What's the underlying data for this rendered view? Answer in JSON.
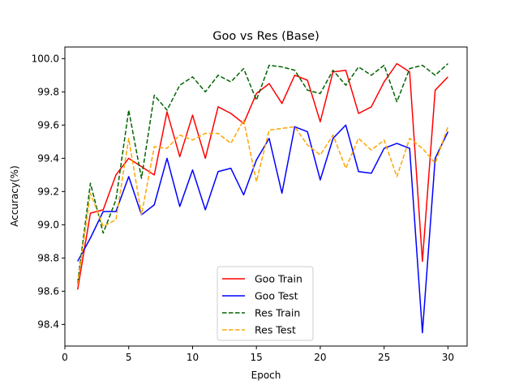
{
  "chart_data": {
    "type": "line",
    "title": "Goo vs Res (Base)",
    "xlabel": "Epoch",
    "ylabel": "Accuracy(%)",
    "xlim": [
      0,
      31.5
    ],
    "ylim": [
      98.27,
      100.07
    ],
    "xticks": [
      0,
      5,
      10,
      15,
      20,
      25,
      30
    ],
    "yticks": [
      98.4,
      98.6,
      98.8,
      99.0,
      99.2,
      99.4,
      99.6,
      99.8,
      100.0
    ],
    "ytick_labels": [
      "98.4",
      "98.6",
      "98.8",
      "99.0",
      "99.2",
      "99.4",
      "99.6",
      "99.8",
      "100.0"
    ],
    "grid": false,
    "legend_position": "lower center",
    "x": [
      1,
      2,
      3,
      4,
      5,
      6,
      7,
      8,
      9,
      10,
      11,
      12,
      13,
      14,
      15,
      16,
      17,
      18,
      19,
      20,
      21,
      22,
      23,
      24,
      25,
      26,
      27,
      28,
      29,
      30
    ],
    "series": [
      {
        "name": "Goo Train",
        "color": "#ff0000",
        "style": "solid",
        "values": [
          98.61,
          99.07,
          99.09,
          99.3,
          99.4,
          99.35,
          99.3,
          99.68,
          99.41,
          99.66,
          99.4,
          99.71,
          99.67,
          99.61,
          99.79,
          99.85,
          99.73,
          99.9,
          99.87,
          99.62,
          99.92,
          99.93,
          99.67,
          99.71,
          99.86,
          99.97,
          99.92,
          98.78,
          99.81,
          99.89
        ]
      },
      {
        "name": "Goo Test",
        "color": "#0000ff",
        "style": "solid",
        "values": [
          98.78,
          98.92,
          99.08,
          99.08,
          99.29,
          99.06,
          99.12,
          99.4,
          99.11,
          99.33,
          99.09,
          99.32,
          99.34,
          99.18,
          99.39,
          99.52,
          99.19,
          99.59,
          99.56,
          99.27,
          99.52,
          99.6,
          99.32,
          99.31,
          99.46,
          99.49,
          99.46,
          98.35,
          99.4,
          99.56
        ]
      },
      {
        "name": "Res Train",
        "color": "#006400",
        "style": "dashed",
        "values": [
          98.65,
          99.25,
          98.95,
          99.15,
          99.69,
          99.28,
          99.78,
          99.69,
          99.84,
          99.89,
          99.8,
          99.9,
          99.86,
          99.94,
          99.75,
          99.96,
          99.95,
          99.93,
          99.81,
          99.79,
          99.93,
          99.84,
          99.95,
          99.9,
          99.96,
          99.74,
          99.94,
          99.96,
          99.9,
          99.97
        ]
      },
      {
        "name": "Res Test",
        "color": "#ffa500",
        "style": "dashed",
        "values": [
          98.64,
          99.19,
          98.99,
          99.03,
          99.52,
          99.06,
          99.47,
          99.46,
          99.54,
          99.51,
          99.55,
          99.55,
          99.49,
          99.63,
          99.26,
          99.57,
          99.58,
          99.59,
          99.48,
          99.42,
          99.54,
          99.34,
          99.52,
          99.45,
          99.51,
          99.29,
          99.52,
          99.46,
          99.37,
          99.59
        ]
      }
    ]
  }
}
